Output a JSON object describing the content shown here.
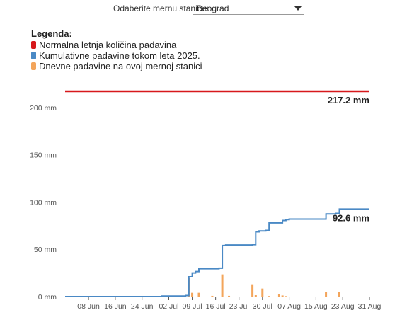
{
  "station_selector": {
    "label": "Odaberite mernu stanicu:",
    "value": "Beograd",
    "icon": "chevron-down-icon"
  },
  "legend": {
    "title": "Legenda:",
    "items": [
      {
        "label": "Normalna letnja količina padavina",
        "color": "#d7191c"
      },
      {
        "label": "Kumulativne padavine tokom leta 2025.",
        "color": "#4a89c5"
      },
      {
        "label": "Dnevne padavine na ovoj mernoj stanici",
        "color": "#f3a55b"
      }
    ]
  },
  "chart_data": {
    "type": "line",
    "x_start": "2025-06-01",
    "x_end": "2025-08-31",
    "ylim": [
      0,
      217.2
    ],
    "y_ticks": [
      0,
      50,
      100,
      150,
      200
    ],
    "y_tick_labels": [
      "0 mm",
      "50 mm",
      "100 mm",
      "150 mm",
      "200 mm"
    ],
    "x_ticks": [
      "2025-06-08",
      "2025-06-16",
      "2025-06-24",
      "2025-07-02",
      "2025-07-09",
      "2025-07-16",
      "2025-07-23",
      "2025-07-30",
      "2025-08-07",
      "2025-08-15",
      "2025-08-23",
      "2025-08-31"
    ],
    "x_tick_labels": [
      "08 Jun",
      "16 Jun",
      "24 Jun",
      "02 Jul",
      "09 Jul",
      "16 Jul",
      "23 Jul",
      "30 Jul",
      "07 Aug",
      "15 Aug",
      "23 Aug",
      "31 Aug"
    ],
    "normal": {
      "value": 217.2,
      "label": "217.2 mm",
      "color": "#d7191c"
    },
    "cumulative": {
      "color": "#4a89c5",
      "label": "92.6 mm",
      "points": [
        [
          "2025-06-01",
          0
        ],
        [
          "2025-06-30",
          0.6
        ],
        [
          "2025-07-07",
          1.1
        ],
        [
          "2025-07-08",
          21.0
        ],
        [
          "2025-07-09",
          25.0
        ],
        [
          "2025-07-10",
          26.5
        ],
        [
          "2025-07-11",
          29.5
        ],
        [
          "2025-07-17",
          30.0
        ],
        [
          "2025-07-18",
          54.0
        ],
        [
          "2025-07-19",
          54.6
        ],
        [
          "2025-07-27",
          55.0
        ],
        [
          "2025-07-28",
          68.5
        ],
        [
          "2025-07-29",
          69.5
        ],
        [
          "2025-07-31",
          70.0
        ],
        [
          "2025-08-01",
          78.0
        ],
        [
          "2025-08-05",
          80.5
        ],
        [
          "2025-08-06",
          81.5
        ],
        [
          "2025-08-07",
          82.0
        ],
        [
          "2025-08-17",
          82.0
        ],
        [
          "2025-08-18",
          87.5
        ],
        [
          "2025-08-21",
          88.0
        ],
        [
          "2025-08-22",
          92.6
        ],
        [
          "2025-08-31",
          92.6
        ]
      ]
    },
    "daily": {
      "color": "#f3a55b",
      "dates": [
        "2025-07-08",
        "2025-07-09",
        "2025-07-11",
        "2025-07-15",
        "2025-07-18",
        "2025-07-20",
        "2025-07-27",
        "2025-07-28",
        "2025-07-30",
        "2025-08-01",
        "2025-08-04",
        "2025-08-05",
        "2025-08-06",
        "2025-08-18",
        "2025-08-22"
      ],
      "values": [
        19.5,
        4.0,
        4.0,
        0.8,
        23.5,
        0.8,
        13.0,
        1.5,
        8.5,
        0.6,
        2.3,
        1.2,
        0.5,
        4.8,
        5.0
      ]
    }
  }
}
